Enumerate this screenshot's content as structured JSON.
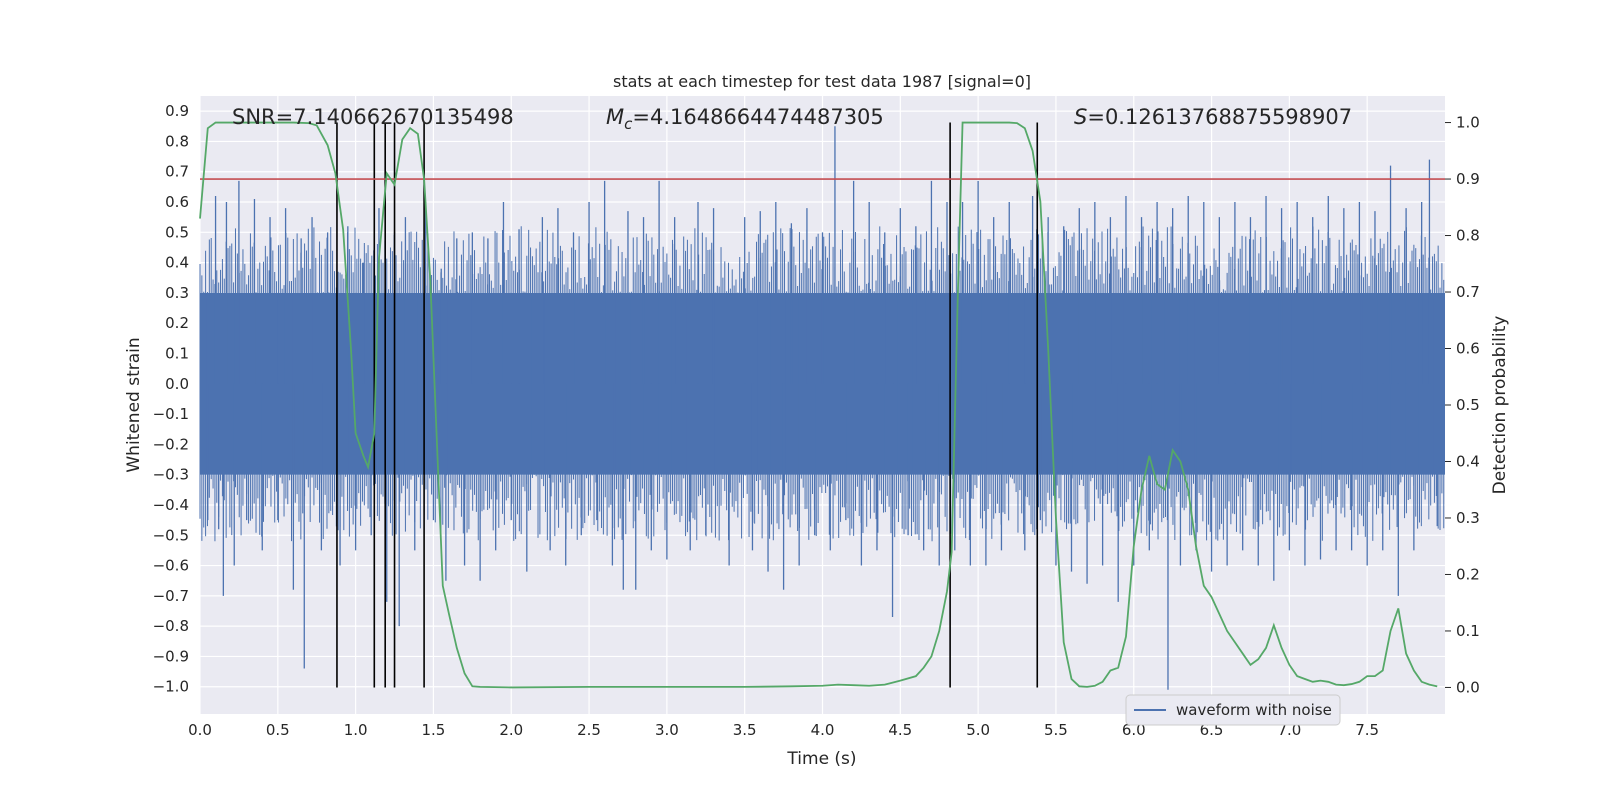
{
  "chart_data": {
    "type": "line",
    "title": "stats at each timestep for test data 1987 [signal=0]",
    "xlabel": "Time (s)",
    "ylabel": "Whitened strain",
    "y2label": "Detection probability",
    "xlim": [
      0.0,
      8.0
    ],
    "ylim": [
      -1.09,
      0.95
    ],
    "y2lim": [
      -0.047,
      1.047
    ],
    "xticks": [
      0.0,
      0.5,
      1.0,
      1.5,
      2.0,
      2.5,
      3.0,
      3.5,
      4.0,
      4.5,
      5.0,
      5.5,
      6.0,
      6.5,
      7.0,
      7.5
    ],
    "xtick_labels": [
      "0.0",
      "0.5",
      "1.0",
      "1.5",
      "2.0",
      "2.5",
      "3.0",
      "3.5",
      "4.0",
      "4.5",
      "5.0",
      "5.5",
      "6.0",
      "6.5",
      "7.0",
      "7.5"
    ],
    "yticks": [
      0.9,
      0.8,
      0.7,
      0.6,
      0.5,
      0.4,
      0.3,
      0.2,
      0.1,
      0.0,
      -0.1,
      -0.2,
      -0.3,
      -0.4,
      -0.5,
      -0.6,
      -0.7,
      -0.8,
      -0.9,
      -1.0
    ],
    "ytick_labels": [
      "0.9",
      "0.8",
      "0.7",
      "0.6",
      "0.5",
      "0.4",
      "0.3",
      "0.2",
      "0.1",
      "0.0",
      "−0.1",
      "−0.2",
      "−0.3",
      "−0.4",
      "−0.5",
      "−0.6",
      "−0.7",
      "−0.8",
      "−0.9",
      "−1.0"
    ],
    "y2ticks": [
      1.0,
      0.9,
      0.8,
      0.7,
      0.6,
      0.5,
      0.4,
      0.3,
      0.2,
      0.1,
      0.0
    ],
    "y2tick_labels": [
      "1.0",
      "0.9",
      "0.8",
      "0.7",
      "0.6",
      "0.5",
      "0.4",
      "0.3",
      "0.2",
      "0.1",
      "0.0"
    ],
    "annotations": {
      "snr": "SNR=7.140662670135498",
      "mc_symbol": "M",
      "mc_sub": "c",
      "mc_value": "=4.1648664474487305",
      "s_symbol": "S",
      "s_value": "=0.12613768875598907"
    },
    "legend": {
      "label": "waveform with noise",
      "placement": "lower right"
    },
    "series": [
      {
        "name": "waveform with noise",
        "axis": "left",
        "style": "dense noise",
        "color": "#4c72b0",
        "body_band": [
          -0.3,
          0.3
        ],
        "spikes": [
          [
            0.05,
            -0.45
          ],
          [
            0.1,
            0.62
          ],
          [
            0.12,
            -0.48
          ],
          [
            0.15,
            -0.7
          ],
          [
            0.17,
            0.6
          ],
          [
            0.22,
            -0.6
          ],
          [
            0.25,
            0.67
          ],
          [
            0.3,
            -0.45
          ],
          [
            0.35,
            0.61
          ],
          [
            0.4,
            -0.55
          ],
          [
            0.45,
            0.55
          ],
          [
            0.5,
            -0.45
          ],
          [
            0.55,
            0.58
          ],
          [
            0.6,
            -0.68
          ],
          [
            0.65,
            0.48
          ],
          [
            0.67,
            -0.94
          ],
          [
            0.72,
            0.55
          ],
          [
            0.78,
            -0.55
          ],
          [
            0.82,
            0.5
          ],
          [
            0.9,
            -0.6
          ],
          [
            0.95,
            0.52
          ],
          [
            1.0,
            -0.55
          ],
          [
            1.05,
            0.4
          ],
          [
            1.1,
            -0.5
          ],
          [
            1.15,
            0.58
          ],
          [
            1.2,
            -0.72
          ],
          [
            1.25,
            0.5
          ],
          [
            1.28,
            -0.8
          ],
          [
            1.32,
            0.55
          ],
          [
            1.38,
            -0.55
          ],
          [
            1.45,
            0.6
          ],
          [
            1.5,
            -0.45
          ],
          [
            1.55,
            0.38
          ],
          [
            1.58,
            -0.65
          ],
          [
            1.65,
            0.48
          ],
          [
            1.7,
            -0.6
          ],
          [
            1.75,
            0.5
          ],
          [
            1.8,
            -0.65
          ],
          [
            1.85,
            0.48
          ],
          [
            1.9,
            -0.55
          ],
          [
            1.95,
            0.6
          ],
          [
            2.0,
            -0.45
          ],
          [
            2.05,
            0.51
          ],
          [
            2.1,
            -0.62
          ],
          [
            2.2,
            0.55
          ],
          [
            2.25,
            -0.55
          ],
          [
            2.3,
            0.58
          ],
          [
            2.35,
            -0.6
          ],
          [
            2.4,
            0.5
          ],
          [
            2.45,
            -0.5
          ],
          [
            2.5,
            0.6
          ],
          [
            2.55,
            -0.45
          ],
          [
            2.6,
            0.67
          ],
          [
            2.65,
            -0.6
          ],
          [
            2.72,
            -0.68
          ],
          [
            2.75,
            0.57
          ],
          [
            2.8,
            -0.68
          ],
          [
            2.85,
            0.55
          ],
          [
            2.9,
            -0.55
          ],
          [
            2.95,
            0.67
          ],
          [
            3.0,
            -0.58
          ],
          [
            3.05,
            0.55
          ],
          [
            3.15,
            -0.55
          ],
          [
            3.2,
            0.6
          ],
          [
            3.25,
            -0.5
          ],
          [
            3.3,
            0.58
          ],
          [
            3.4,
            -0.6
          ],
          [
            3.5,
            0.55
          ],
          [
            3.55,
            -0.55
          ],
          [
            3.6,
            0.57
          ],
          [
            3.65,
            -0.62
          ],
          [
            3.7,
            0.6
          ],
          [
            3.75,
            -0.68
          ],
          [
            3.8,
            0.53
          ],
          [
            3.85,
            -0.6
          ],
          [
            3.9,
            0.58
          ],
          [
            3.95,
            -0.5
          ],
          [
            4.0,
            0.5
          ],
          [
            4.05,
            -0.55
          ],
          [
            4.08,
            0.85
          ],
          [
            4.15,
            -0.45
          ],
          [
            4.2,
            0.67
          ],
          [
            4.25,
            -0.6
          ],
          [
            4.3,
            0.6
          ],
          [
            4.35,
            -0.55
          ],
          [
            4.4,
            0.5
          ],
          [
            4.45,
            -0.77
          ],
          [
            4.5,
            0.58
          ],
          [
            4.55,
            -0.5
          ],
          [
            4.6,
            0.52
          ],
          [
            4.65,
            -0.55
          ],
          [
            4.7,
            0.67
          ],
          [
            4.75,
            -0.6
          ],
          [
            4.8,
            0.6
          ],
          [
            4.85,
            -0.55
          ],
          [
            4.9,
            0.6
          ],
          [
            4.95,
            -0.6
          ],
          [
            5.0,
            0.67
          ],
          [
            5.05,
            -0.6
          ],
          [
            5.1,
            0.55
          ],
          [
            5.15,
            -0.55
          ],
          [
            5.2,
            0.6
          ],
          [
            5.3,
            -0.55
          ],
          [
            5.35,
            0.62
          ],
          [
            5.4,
            -0.45
          ],
          [
            5.45,
            0.55
          ],
          [
            5.5,
            -0.6
          ],
          [
            5.55,
            0.52
          ],
          [
            5.6,
            -0.62
          ],
          [
            5.65,
            0.58
          ],
          [
            5.7,
            -0.66
          ],
          [
            5.75,
            0.6
          ],
          [
            5.8,
            -0.6
          ],
          [
            5.85,
            0.55
          ],
          [
            5.9,
            -0.72
          ],
          [
            5.95,
            0.62
          ],
          [
            6.0,
            -0.6
          ],
          [
            6.05,
            0.55
          ],
          [
            6.1,
            -0.55
          ],
          [
            6.15,
            0.6
          ],
          [
            6.22,
            -1.01
          ],
          [
            6.25,
            0.58
          ],
          [
            6.3,
            -0.6
          ],
          [
            6.35,
            0.62
          ],
          [
            6.4,
            -0.55
          ],
          [
            6.45,
            0.6
          ],
          [
            6.5,
            -0.62
          ],
          [
            6.55,
            0.55
          ],
          [
            6.6,
            -0.6
          ],
          [
            6.65,
            0.6
          ],
          [
            6.7,
            -0.55
          ],
          [
            6.75,
            0.55
          ],
          [
            6.8,
            -0.6
          ],
          [
            6.85,
            0.62
          ],
          [
            6.9,
            -0.65
          ],
          [
            6.95,
            0.58
          ],
          [
            7.0,
            -0.55
          ],
          [
            7.05,
            0.6
          ],
          [
            7.1,
            -0.6
          ],
          [
            7.15,
            0.55
          ],
          [
            7.2,
            -0.58
          ],
          [
            7.25,
            0.62
          ],
          [
            7.3,
            -0.55
          ],
          [
            7.35,
            0.58
          ],
          [
            7.4,
            -0.55
          ],
          [
            7.45,
            0.6
          ],
          [
            7.5,
            -0.6
          ],
          [
            7.55,
            0.57
          ],
          [
            7.6,
            -0.55
          ],
          [
            7.65,
            0.72
          ],
          [
            7.7,
            -0.7
          ],
          [
            7.75,
            0.58
          ],
          [
            7.8,
            -0.55
          ],
          [
            7.85,
            0.6
          ],
          [
            7.9,
            0.74
          ],
          [
            7.95,
            -0.47
          ]
        ]
      },
      {
        "name": "detection probability",
        "axis": "right",
        "color": "#55a868",
        "x": [
          0.0,
          0.05,
          0.1,
          0.2,
          0.3,
          0.4,
          0.5,
          0.6,
          0.7,
          0.75,
          0.82,
          0.87,
          0.92,
          0.97,
          1.0,
          1.05,
          1.08,
          1.12,
          1.15,
          1.2,
          1.25,
          1.3,
          1.35,
          1.4,
          1.44,
          1.48,
          1.52,
          1.56,
          1.6,
          1.65,
          1.7,
          1.75,
          1.8,
          2.0,
          2.5,
          3.0,
          3.5,
          3.8,
          4.0,
          4.1,
          4.2,
          4.3,
          4.4,
          4.5,
          4.6,
          4.65,
          4.7,
          4.75,
          4.8,
          4.83,
          4.87,
          4.9,
          5.0,
          5.1,
          5.2,
          5.25,
          5.3,
          5.35,
          5.4,
          5.45,
          5.5,
          5.55,
          5.6,
          5.65,
          5.7,
          5.75,
          5.8,
          5.85,
          5.9,
          5.95,
          6.0,
          6.05,
          6.1,
          6.15,
          6.2,
          6.25,
          6.3,
          6.35,
          6.4,
          6.45,
          6.5,
          6.55,
          6.6,
          6.65,
          6.7,
          6.75,
          6.8,
          6.85,
          6.9,
          6.95,
          7.0,
          7.05,
          7.1,
          7.15,
          7.2,
          7.25,
          7.3,
          7.35,
          7.4,
          7.45,
          7.5,
          7.55,
          7.6,
          7.65,
          7.7,
          7.75,
          7.8,
          7.85,
          7.9,
          7.95
        ],
        "y": [
          0.83,
          0.99,
          1.0,
          1.0,
          1.0,
          1.0,
          1.0,
          1.0,
          0.999,
          0.995,
          0.96,
          0.91,
          0.81,
          0.6,
          0.45,
          0.41,
          0.39,
          0.45,
          0.76,
          0.91,
          0.89,
          0.97,
          0.99,
          0.98,
          0.9,
          0.72,
          0.45,
          0.18,
          0.13,
          0.07,
          0.025,
          0.002,
          0.001,
          0.0,
          0.001,
          0.001,
          0.001,
          0.002,
          0.003,
          0.005,
          0.004,
          0.003,
          0.005,
          0.012,
          0.02,
          0.035,
          0.055,
          0.1,
          0.17,
          0.24,
          0.7,
          1.0,
          1.0,
          1.0,
          1.0,
          0.999,
          0.99,
          0.95,
          0.86,
          0.6,
          0.3,
          0.08,
          0.015,
          0.002,
          0.001,
          0.003,
          0.01,
          0.03,
          0.035,
          0.09,
          0.25,
          0.35,
          0.41,
          0.36,
          0.35,
          0.42,
          0.4,
          0.35,
          0.25,
          0.18,
          0.16,
          0.13,
          0.1,
          0.08,
          0.06,
          0.04,
          0.05,
          0.07,
          0.11,
          0.07,
          0.04,
          0.02,
          0.015,
          0.01,
          0.012,
          0.01,
          0.005,
          0.004,
          0.006,
          0.01,
          0.02,
          0.02,
          0.03,
          0.1,
          0.14,
          0.06,
          0.03,
          0.01,
          0.005,
          0.002
        ]
      }
    ],
    "threshold_line": {
      "axis": "right",
      "value": 0.9,
      "color": "#c44e52"
    },
    "vertical_lines": [
      0.88,
      1.12,
      1.19,
      1.25,
      1.44,
      4.82,
      5.38
    ]
  }
}
